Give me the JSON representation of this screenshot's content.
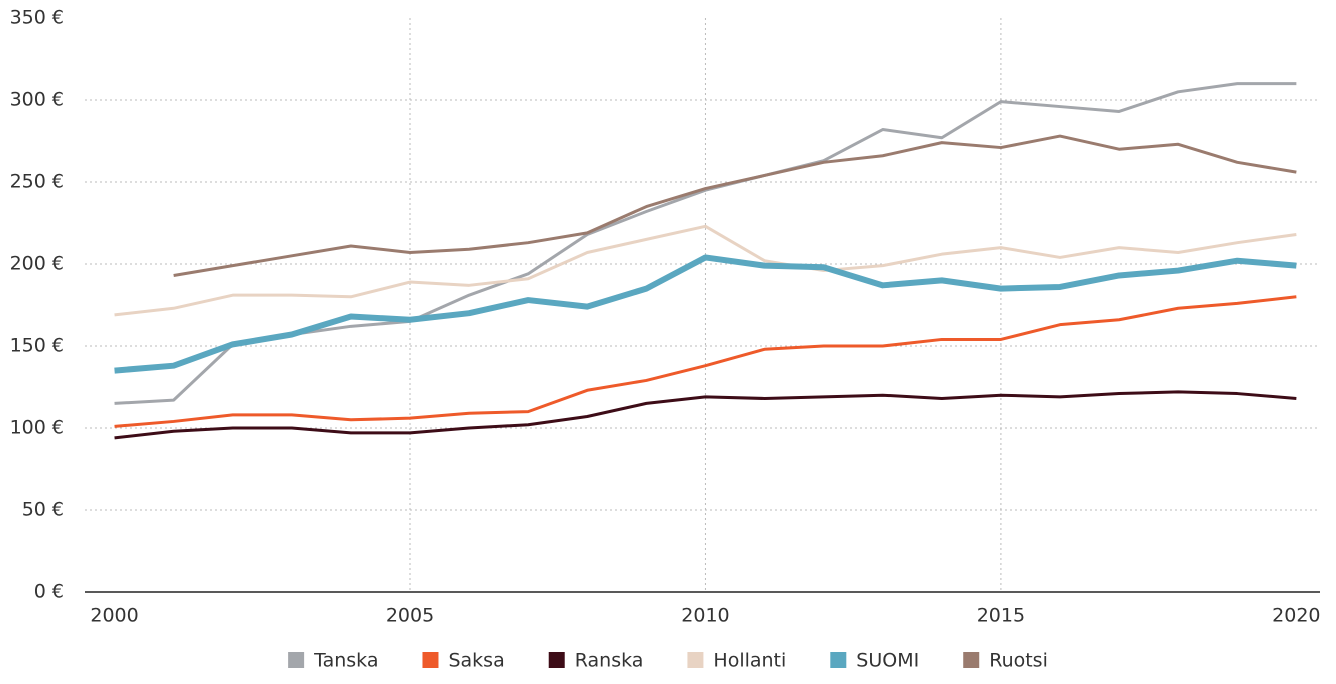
{
  "chart_data": {
    "type": "line",
    "x": [
      2000,
      2001,
      2002,
      2003,
      2004,
      2005,
      2006,
      2007,
      2008,
      2009,
      2010,
      2011,
      2012,
      2013,
      2014,
      2015,
      2016,
      2017,
      2018,
      2019,
      2020
    ],
    "series": [
      {
        "name": "Tanska",
        "color": "#a3a6ab",
        "linewidth": 3,
        "values": [
          115,
          117,
          151,
          157,
          162,
          165,
          181,
          194,
          218,
          232,
          245,
          254,
          263,
          282,
          277,
          299,
          296,
          293,
          305,
          310,
          310
        ]
      },
      {
        "name": "Saksa",
        "color": "#ee5a2a",
        "linewidth": 3,
        "values": [
          101,
          104,
          108,
          108,
          105,
          106,
          109,
          110,
          123,
          129,
          138,
          148,
          150,
          150,
          154,
          154,
          163,
          166,
          173,
          176,
          180
        ]
      },
      {
        "name": "Ranska",
        "color": "#3d0c17",
        "linewidth": 3,
        "values": [
          94,
          98,
          100,
          100,
          97,
          97,
          100,
          102,
          107,
          115,
          119,
          118,
          119,
          120,
          118,
          120,
          119,
          121,
          122,
          121,
          118
        ]
      },
      {
        "name": "Hollanti",
        "color": "#e8d3c3",
        "linewidth": 3,
        "values": [
          169,
          173,
          181,
          181,
          180,
          189,
          187,
          191,
          207,
          215,
          223,
          202,
          196,
          199,
          206,
          210,
          204,
          210,
          207,
          213,
          218
        ]
      },
      {
        "name": "SUOMI",
        "color": "#5aa7c0",
        "linewidth": 6,
        "values": [
          135,
          138,
          151,
          157,
          168,
          166,
          170,
          178,
          174,
          185,
          204,
          199,
          198,
          187,
          190,
          185,
          186,
          193,
          196,
          202,
          199
        ]
      },
      {
        "name": "Ruotsi",
        "color": "#9a7b6e",
        "linewidth": 3,
        "values": [
          null,
          193,
          199,
          205,
          211,
          207,
          209,
          213,
          219,
          235,
          246,
          254,
          262,
          266,
          274,
          271,
          278,
          270,
          273,
          262,
          256
        ]
      }
    ],
    "xlim": [
      1999.5,
      2020.4
    ],
    "xticks": [
      2000,
      2005,
      2010,
      2015,
      2020
    ],
    "ylim": [
      0,
      350
    ],
    "yticks": [
      {
        "value": 0,
        "label": "0 €"
      },
      {
        "value": 50,
        "label": "50 €"
      },
      {
        "value": 100,
        "label": "100 €"
      },
      {
        "value": 150,
        "label": "150 €"
      },
      {
        "value": 200,
        "label": "200 €"
      },
      {
        "value": 250,
        "label": "250 €"
      },
      {
        "value": 300,
        "label": "300 €"
      },
      {
        "value": 350,
        "label": "350 €"
      }
    ],
    "grid": true,
    "legend": "bottom"
  }
}
